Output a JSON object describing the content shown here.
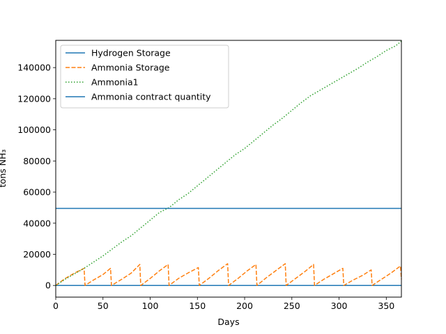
{
  "chart_data": {
    "type": "line",
    "title": "",
    "xlabel": "Days",
    "ylabel": "tons NH₃",
    "xlim": [
      0,
      366
    ],
    "ylim": [
      -7500,
      157500
    ],
    "xticks": [
      "0",
      "50",
      "100",
      "150",
      "200",
      "250",
      "300",
      "350"
    ],
    "yticks": [
      "0",
      "20000",
      "40000",
      "60000",
      "80000",
      "100000",
      "120000",
      "140000"
    ],
    "grid": false,
    "legend_position": "upper-left",
    "series": [
      {
        "name": "Hydrogen Storage",
        "color": "#1f77b4",
        "style": "solid",
        "x": [
          0,
          366
        ],
        "y": [
          0,
          0
        ]
      },
      {
        "name": "Ammonia Storage",
        "color": "#ff7f0e",
        "style": "dashed",
        "x": [
          0,
          10,
          20,
          30,
          31,
          40,
          50,
          58,
          59,
          70,
          80,
          89,
          90,
          100,
          110,
          119,
          120,
          130,
          140,
          151,
          152,
          162,
          172,
          182,
          183,
          193,
          203,
          212,
          213,
          223,
          233,
          243,
          244,
          254,
          264,
          273,
          274,
          284,
          294,
          304,
          305,
          315,
          325,
          334,
          335,
          345,
          355,
          365,
          366
        ],
        "y": [
          0,
          4500,
          8000,
          11000,
          0,
          3500,
          7000,
          11000,
          0,
          4000,
          8000,
          13500,
          0,
          4500,
          9500,
          13500,
          0,
          4500,
          8000,
          11500,
          0,
          4500,
          9500,
          14000,
          0,
          4500,
          9500,
          13500,
          0,
          5000,
          9500,
          14000,
          0,
          4500,
          9000,
          13500,
          0,
          4000,
          7500,
          11000,
          0,
          3500,
          6500,
          10000,
          0,
          4000,
          8000,
          12500,
          4000
        ]
      },
      {
        "name": "Ammonia1",
        "color": "#2ca02c",
        "style": "dotted",
        "x": [
          0,
          10,
          20,
          30,
          40,
          50,
          60,
          70,
          80,
          90,
          100,
          110,
          120,
          130,
          140,
          150,
          160,
          170,
          180,
          190,
          200,
          210,
          220,
          230,
          240,
          250,
          260,
          270,
          280,
          290,
          300,
          310,
          320,
          330,
          340,
          350,
          360,
          366
        ],
        "y": [
          0,
          4000,
          7500,
          11000,
          15000,
          19000,
          23500,
          28000,
          32000,
          37000,
          42000,
          47000,
          50000,
          55000,
          59000,
          64000,
          69000,
          74000,
          79000,
          84000,
          88000,
          93000,
          98000,
          103000,
          107500,
          112500,
          117500,
          122000,
          125500,
          129000,
          132500,
          136000,
          139500,
          143500,
          147000,
          151000,
          154000,
          157000
        ]
      },
      {
        "name": "Ammonia contract quantity",
        "color": "#1f77b4",
        "style": "solid",
        "x": [
          0,
          366
        ],
        "y": [
          49500,
          49500
        ]
      }
    ]
  }
}
